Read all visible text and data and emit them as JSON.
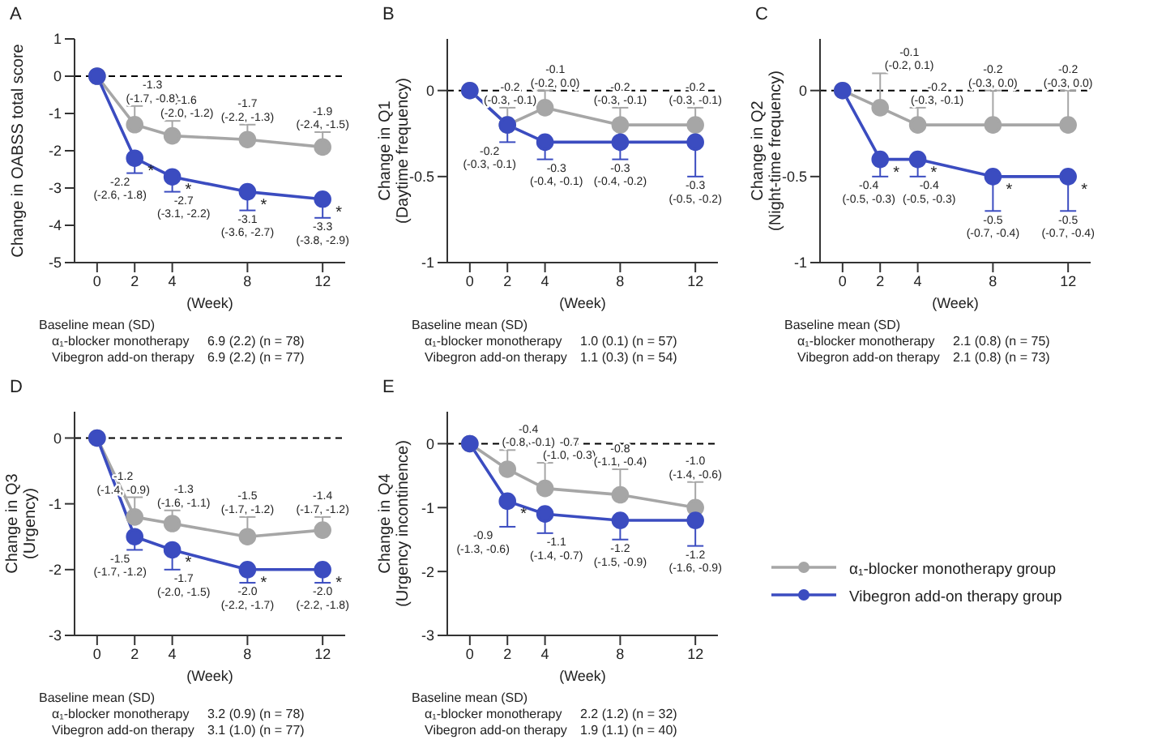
{
  "chart_data": [
    {
      "type": "line",
      "title": "A",
      "xlabel": "(Week)",
      "ylabel": "Change in OABSS total score",
      "x": [
        0,
        2,
        4,
        8,
        12
      ],
      "xlim": [
        -1.2,
        13.2
      ],
      "xticks": [
        0,
        2,
        4,
        8,
        12
      ],
      "ylim": [
        -5,
        1
      ],
      "yticks": [
        -5,
        -4,
        -3,
        -2,
        -1,
        0,
        1
      ],
      "marker": "circle",
      "line_style": "solid",
      "ref_lines": [
        {
          "axis": "y",
          "value": 0,
          "color": "#000000",
          "line_style": "dashed"
        }
      ],
      "series": [
        {
          "color": "#a6a6a6",
          "values": [
            0,
            -1.3,
            -1.6,
            -1.7,
            -1.9
          ],
          "errors": [
            null,
            [
              -1.3,
              -0.8
            ],
            [
              -1.6,
              -1.2
            ],
            [
              -1.7,
              -1.3
            ],
            [
              -1.9,
              -1.5
            ]
          ],
          "value_labels": [
            null,
            "-1.3\n(-1.7, -0.8)",
            "-1.6\n(-2.0, -1.2)",
            "-1.7\n(-2.2, -1.3)",
            "-1.9\n(-2.4, -1.5)"
          ]
        },
        {
          "color": "#3b4cc0",
          "values": [
            0,
            -2.2,
            -2.7,
            -3.1,
            -3.3
          ],
          "errors": [
            null,
            [
              -2.6,
              -2.2
            ],
            [
              -3.1,
              -2.7
            ],
            [
              -3.6,
              -3.1
            ],
            [
              -3.8,
              -3.3
            ]
          ],
          "value_labels": [
            null,
            "-2.2\n(-2.6, -1.8)",
            "-2.7\n(-3.1, -2.2)",
            "-3.1\n(-3.6, -2.7)",
            "-3.3\n(-3.8, -2.9)"
          ]
        }
      ],
      "annotations": [
        "Baseline mean (SD)",
        "α₁-blocker monotherapy",
        "6.9 (2.2) (n = 78)",
        "Vibegron add-on therapy",
        "6.9 (2.2) (n = 77)",
        {
          "text": "*",
          "x": 2,
          "y": -2.2
        },
        {
          "text": "*",
          "x": 4,
          "y": -2.7
        },
        {
          "text": "*",
          "x": 8,
          "y": -3.1
        },
        {
          "text": "*",
          "x": 12,
          "y": -3.3
        }
      ]
    },
    {
      "type": "line",
      "title": "B",
      "xlabel": "(Week)",
      "ylabel": "Change in Q1\n(Daytime frequency)",
      "x": [
        0,
        2,
        4,
        8,
        12
      ],
      "xlim": [
        -1.2,
        13.2
      ],
      "xticks": [
        0,
        2,
        4,
        8,
        12
      ],
      "ylim": [
        -1,
        0.3
      ],
      "yticks": [
        -1,
        -0.5,
        0
      ],
      "marker": "circle",
      "line_style": "solid",
      "ref_lines": [
        {
          "axis": "y",
          "value": 0,
          "color": "#000000",
          "line_style": "dashed"
        }
      ],
      "series": [
        {
          "color": "#a6a6a6",
          "values": [
            0,
            -0.2,
            -0.1,
            -0.2,
            -0.2
          ],
          "errors": [
            null,
            [
              -0.2,
              -0.1
            ],
            [
              -0.1,
              0.0
            ],
            [
              -0.2,
              -0.1
            ],
            [
              -0.2,
              -0.1
            ]
          ],
          "value_labels": [
            null,
            "-0.2\n(-0.3, -0.1)",
            "-0.1\n(-0.2, 0.0)",
            "-0.2\n(-0.3, -0.1)",
            "-0.2\n(-0.3, -0.1)"
          ]
        },
        {
          "color": "#3b4cc0",
          "values": [
            0,
            -0.2,
            -0.3,
            -0.3,
            -0.3
          ],
          "errors": [
            null,
            [
              -0.3,
              -0.2
            ],
            [
              -0.4,
              -0.3
            ],
            [
              -0.4,
              -0.3
            ],
            [
              -0.5,
              -0.3
            ]
          ],
          "value_labels": [
            null,
            "-0.2\n(-0.3, -0.1)",
            "-0.3\n(-0.4, -0.1)",
            "-0.3\n(-0.4, -0.2)",
            "-0.3\n(-0.5, -0.2)"
          ]
        }
      ],
      "annotations": [
        "Baseline mean (SD)",
        "α₁-blocker monotherapy",
        "1.0 (0.1) (n = 57)",
        "Vibegron add-on therapy",
        "1.1 (0.3) (n = 54)"
      ]
    },
    {
      "type": "line",
      "title": "C",
      "xlabel": "(Week)",
      "ylabel": "Change in Q2\n(Night-time frequency)",
      "x": [
        0,
        2,
        4,
        8,
        12
      ],
      "xlim": [
        -1.2,
        13.2
      ],
      "xticks": [
        0,
        2,
        4,
        8,
        12
      ],
      "ylim": [
        -1,
        0.3
      ],
      "yticks": [
        -1,
        -0.5,
        0
      ],
      "marker": "circle",
      "line_style": "solid",
      "ref_lines": [
        {
          "axis": "y",
          "value": 0,
          "color": "#000000",
          "line_style": "dashed"
        }
      ],
      "series": [
        {
          "color": "#a6a6a6",
          "values": [
            0,
            -0.1,
            -0.2,
            -0.2,
            -0.2
          ],
          "errors": [
            null,
            [
              -0.1,
              0.1
            ],
            [
              -0.2,
              -0.1
            ],
            [
              -0.2,
              0.0
            ],
            [
              -0.2,
              0.0
            ]
          ],
          "value_labels": [
            null,
            "-0.1\n(-0.2, 0.1)",
            "-0.2\n(-0.3, -0.1)",
            "-0.2\n(-0.3, 0.0)",
            "-0.2\n(-0.3, 0.0)"
          ]
        },
        {
          "color": "#3b4cc0",
          "values": [
            0,
            -0.4,
            -0.4,
            -0.5,
            -0.5
          ],
          "errors": [
            null,
            [
              -0.5,
              -0.4
            ],
            [
              -0.5,
              -0.4
            ],
            [
              -0.7,
              -0.5
            ],
            [
              -0.7,
              -0.5
            ]
          ],
          "value_labels": [
            null,
            "-0.4\n(-0.5, -0.3)",
            "-0.4\n(-0.5, -0.3)",
            "-0.5\n(-0.7, -0.4)",
            "-0.5\n(-0.7, -0.4)"
          ]
        }
      ],
      "annotations": [
        "Baseline mean (SD)",
        "α₁-blocker monotherapy",
        "2.1 (0.8) (n = 75)",
        "Vibegron add-on therapy",
        "2.1 (0.8) (n = 73)",
        {
          "text": "*",
          "x": 2,
          "y": -0.4
        },
        {
          "text": "*",
          "x": 4,
          "y": -0.4
        },
        {
          "text": "*",
          "x": 8,
          "y": -0.5
        },
        {
          "text": "*",
          "x": 12,
          "y": -0.5
        }
      ]
    },
    {
      "type": "line",
      "title": "D",
      "xlabel": "(Week)",
      "ylabel": "Change in Q3\n(Urgency)",
      "x": [
        0,
        2,
        4,
        8,
        12
      ],
      "xlim": [
        -1.2,
        13.2
      ],
      "xticks": [
        0,
        2,
        4,
        8,
        12
      ],
      "ylim": [
        -3,
        0.4
      ],
      "yticks": [
        -3,
        -2,
        -1,
        0
      ],
      "marker": "circle",
      "line_style": "solid",
      "ref_lines": [
        {
          "axis": "y",
          "value": 0,
          "color": "#000000",
          "line_style": "dashed"
        }
      ],
      "series": [
        {
          "color": "#a6a6a6",
          "values": [
            0,
            -1.2,
            -1.3,
            -1.5,
            -1.4
          ],
          "errors": [
            null,
            [
              -1.2,
              -0.9
            ],
            [
              -1.3,
              -1.1
            ],
            [
              -1.5,
              -1.2
            ],
            [
              -1.4,
              -1.2
            ]
          ],
          "value_labels": [
            null,
            "-1.2\n(-1.4, -0.9)",
            "-1.3\n(-1.6, -1.1)",
            "-1.5\n(-1.7, -1.2)",
            "-1.4\n(-1.7, -1.2)"
          ]
        },
        {
          "color": "#3b4cc0",
          "values": [
            0,
            -1.5,
            -1.7,
            -2.0,
            -2.0
          ],
          "errors": [
            null,
            [
              -1.7,
              -1.5
            ],
            [
              -2.0,
              -1.7
            ],
            [
              -2.2,
              -2.0
            ],
            [
              -2.2,
              -2.0
            ]
          ],
          "value_labels": [
            null,
            "-1.5\n(-1.7, -1.2)",
            "-1.7\n(-2.0, -1.5)",
            "-2.0\n(-2.2, -1.7)",
            "-2.0\n(-2.2, -1.8)"
          ]
        }
      ],
      "annotations": [
        "Baseline mean (SD)",
        "α₁-blocker monotherapy",
        "3.2 (0.9) (n = 78)",
        "Vibegron add-on therapy",
        "3.1 (1.0) (n = 77)",
        {
          "text": "*",
          "x": 4,
          "y": -1.7
        },
        {
          "text": "*",
          "x": 8,
          "y": -2.0
        },
        {
          "text": "*",
          "x": 12,
          "y": -2.0
        }
      ]
    },
    {
      "type": "line",
      "title": "E",
      "xlabel": "(Week)",
      "ylabel": "Change in Q4\n(Urgency incontinence)",
      "x": [
        0,
        2,
        4,
        8,
        12
      ],
      "xlim": [
        -1.2,
        13.2
      ],
      "xticks": [
        0,
        2,
        4,
        8,
        12
      ],
      "ylim": [
        -3,
        0.5
      ],
      "yticks": [
        -3,
        -2,
        -1,
        0
      ],
      "marker": "circle",
      "line_style": "solid",
      "legend": "right",
      "ref_lines": [
        {
          "axis": "y",
          "value": 0,
          "color": "#000000",
          "line_style": "dashed"
        }
      ],
      "series": [
        {
          "name": "α₁-blocker monotherapy group",
          "color": "#a6a6a6",
          "values": [
            0,
            -0.4,
            -0.7,
            -0.8,
            -1.0
          ],
          "errors": [
            null,
            [
              -0.4,
              -0.1
            ],
            [
              -0.7,
              -0.3
            ],
            [
              -0.8,
              -0.4
            ],
            [
              -1.0,
              -0.6
            ]
          ],
          "value_labels": [
            null,
            "-0.4\n(-0.8, -0.1)",
            "-0.7\n(-1.0, -0.3)",
            "-0.8\n(-1.1, -0.4)",
            "-1.0\n(-1.4, -0.6)"
          ]
        },
        {
          "name": "Vibegron add-on therapy group",
          "color": "#3b4cc0",
          "values": [
            0,
            -0.9,
            -1.1,
            -1.2,
            -1.2
          ],
          "errors": [
            null,
            [
              -1.3,
              -0.9
            ],
            [
              -1.4,
              -1.1
            ],
            [
              -1.5,
              -1.2
            ],
            [
              -1.6,
              -1.2
            ]
          ],
          "value_labels": [
            null,
            "-0.9\n(-1.3, -0.6)",
            "-1.1\n(-1.4, -0.7)",
            "-1.2\n(-1.5, -0.9)",
            "-1.2\n(-1.6, -0.9)"
          ]
        }
      ],
      "annotations": [
        "Baseline mean (SD)",
        "α₁-blocker monotherapy",
        "2.2 (1.2) (n = 32)",
        "Vibegron add-on therapy",
        "1.9 (1.1) (n = 40)",
        {
          "text": "*",
          "x": 2,
          "y": -0.9
        }
      ]
    }
  ]
}
